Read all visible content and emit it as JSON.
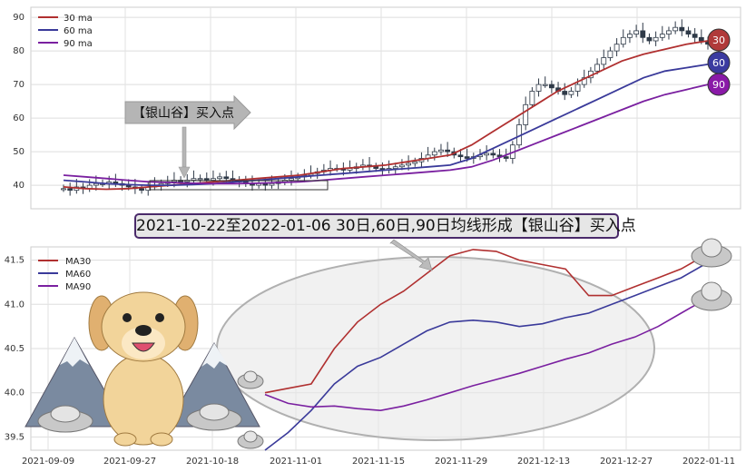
{
  "chart_data": [
    {
      "type": "line",
      "title": "",
      "xlabel": "",
      "ylabel": "",
      "ylim": [
        33,
        93
      ],
      "yticks": [
        40,
        50,
        60,
        70,
        80,
        90
      ],
      "grid": true,
      "legend_position": "top-left",
      "candlestick_close": [
        39,
        38.5,
        39.5,
        39,
        40,
        40.5,
        40.5,
        41,
        40.5,
        40,
        39.5,
        39,
        38.5,
        39.5,
        40,
        40.5,
        41,
        41.5,
        41,
        41.5,
        42,
        42,
        41.5,
        42,
        42.5,
        42,
        41.5,
        41,
        40.5,
        40,
        40.5,
        40,
        40.5,
        41,
        41.5,
        42,
        42.5,
        43,
        43.5,
        44,
        44.5,
        45,
        45,
        44.5,
        45,
        45.5,
        46,
        45.5,
        45,
        44.5,
        45,
        45.5,
        46,
        46.5,
        47,
        48,
        49,
        50,
        50.5,
        50,
        49,
        48.5,
        48,
        48.5,
        49,
        49.5,
        49,
        48.5,
        48,
        52,
        58,
        64,
        68,
        70,
        70,
        69,
        68,
        67,
        68,
        70,
        72,
        74,
        76,
        78,
        80,
        82,
        84,
        85,
        86,
        84,
        83,
        84,
        85,
        86,
        87,
        86,
        85,
        84,
        83,
        82
      ],
      "series": [
        {
          "name": "30 ma",
          "color": "#b03030",
          "values": [
            39.5,
            39,
            38.8,
            39,
            39.5,
            40,
            40.5,
            41,
            41.5,
            42,
            42.5,
            43,
            44,
            45,
            45.5,
            46,
            47,
            48,
            49,
            52,
            56,
            60,
            64,
            68,
            71,
            74,
            77,
            79,
            80.5,
            82,
            83
          ]
        },
        {
          "name": "60 ma",
          "color": "#3a3a9a",
          "values": [
            41.5,
            41,
            40.5,
            40.2,
            40,
            40,
            40.2,
            40.5,
            41,
            41.5,
            42,
            42.5,
            43,
            43.5,
            44,
            44.5,
            45,
            45.5,
            46,
            48,
            51,
            54,
            57,
            60,
            63,
            66,
            69,
            72,
            74,
            75,
            76
          ]
        },
        {
          "name": "90 ma",
          "color": "#7a20a0",
          "values": [
            43,
            42.5,
            42,
            41.5,
            41,
            40.8,
            40.6,
            40.5,
            40.5,
            40.6,
            40.8,
            41,
            41.5,
            42,
            42.5,
            43,
            43.5,
            44,
            44.5,
            45.5,
            47.5,
            50,
            52.5,
            55,
            57.5,
            60,
            62.5,
            65,
            67,
            68.5,
            70
          ]
        }
      ],
      "end_labels": [
        "30",
        "60",
        "90"
      ],
      "annotation": "【银山谷】买入点"
    },
    {
      "type": "line",
      "title": "2021-10-22至2022-01-06 30日,60日,90日均线形成【银山谷】买入点",
      "xlabel": "",
      "ylabel": "",
      "ylim": [
        39.35,
        41.65
      ],
      "yticks": [
        "39.5",
        "40.0",
        "40.5",
        "41.0",
        "41.5"
      ],
      "xticks": [
        "2021-09-09",
        "2021-09-27",
        "2021-10-18",
        "2021-11-01",
        "2021-11-15",
        "2021-11-29",
        "2021-12-13",
        "2021-12-27",
        "2022-01-11"
      ],
      "x": [
        "2021-10-22",
        "2021-10-26",
        "2021-10-30",
        "2021-11-03",
        "2021-11-07",
        "2021-11-11",
        "2021-11-15",
        "2021-11-19",
        "2021-11-23",
        "2021-11-27",
        "2021-12-01",
        "2021-12-05",
        "2021-12-09",
        "2021-12-13",
        "2021-12-17",
        "2021-12-21",
        "2021-12-25",
        "2021-12-29",
        "2022-01-02",
        "2022-01-06"
      ],
      "grid": true,
      "legend_position": "top-left",
      "series": [
        {
          "name": "MA30",
          "color": "#b03030",
          "values": [
            40.0,
            40.05,
            40.1,
            40.5,
            40.8,
            41.0,
            41.15,
            41.35,
            41.55,
            41.62,
            41.6,
            41.5,
            41.45,
            41.4,
            41.1,
            41.1,
            41.2,
            41.3,
            41.4,
            41.55
          ]
        },
        {
          "name": "MA60",
          "color": "#3a3a9a",
          "values": [
            39.35,
            39.55,
            39.8,
            40.1,
            40.3,
            40.4,
            40.55,
            40.7,
            40.8,
            40.82,
            40.8,
            40.75,
            40.78,
            40.85,
            40.9,
            41.0,
            41.1,
            41.2,
            41.3,
            41.45
          ]
        },
        {
          "name": "MA90",
          "color": "#7a20a0",
          "values": [
            39.98,
            39.88,
            39.84,
            39.85,
            39.82,
            39.8,
            39.85,
            39.92,
            40.0,
            40.08,
            40.15,
            40.22,
            40.3,
            40.38,
            40.45,
            40.55,
            40.63,
            40.75,
            40.9,
            41.05
          ]
        }
      ]
    }
  ]
}
